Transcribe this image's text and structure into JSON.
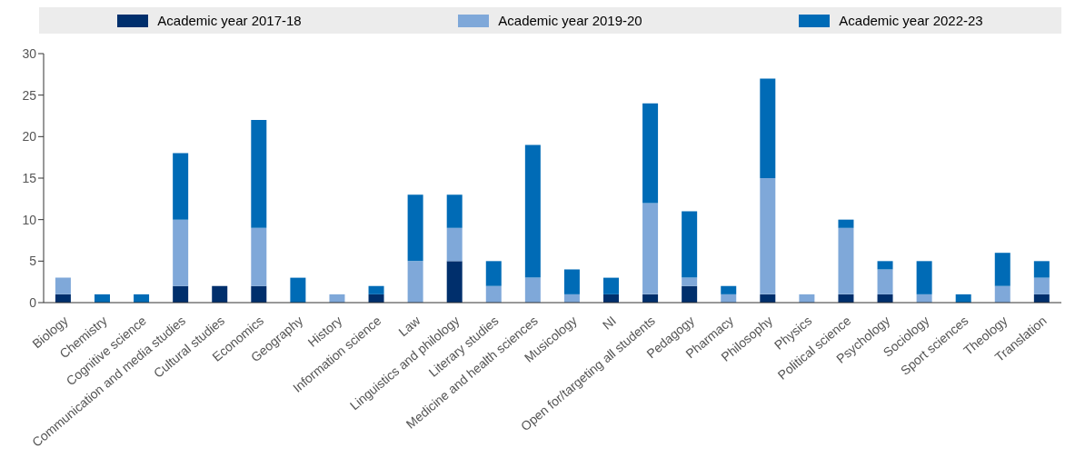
{
  "chart_data": {
    "type": "bar",
    "stacked": true,
    "categories": [
      "Biology",
      "Chemistry",
      "Cognitive science",
      "Communication and media studies",
      "Cultural studies",
      "Economics",
      "Geography",
      "History",
      "Information science",
      "Law",
      "Linguistics and philology",
      "Literary studies",
      "Medicine and health sciences",
      "Musicology",
      "NI",
      "Open for/targeting all students",
      "Pedagogy",
      "Pharmacy",
      "Philosophy",
      "Physics",
      "Political science",
      "Psychology",
      "Sociology",
      "Sport sciences",
      "Theology",
      "Translation"
    ],
    "series": [
      {
        "name": "Academic year 2017-18",
        "color": "#002f6c",
        "values": [
          1,
          0,
          0,
          2,
          2,
          2,
          0,
          0,
          1,
          0,
          5,
          0,
          0,
          0,
          1,
          1,
          2,
          0,
          1,
          0,
          1,
          1,
          0,
          0,
          0,
          1
        ]
      },
      {
        "name": "Academic year 2019-20",
        "color": "#7fa8d9",
        "values": [
          2,
          0,
          0,
          8,
          0,
          7,
          0,
          1,
          0,
          5,
          4,
          2,
          3,
          1,
          0,
          11,
          1,
          1,
          14,
          1,
          8,
          3,
          1,
          0,
          2,
          2
        ]
      },
      {
        "name": "Academic year 2022-23",
        "color": "#006bb6",
        "values": [
          0,
          1,
          1,
          8,
          0,
          13,
          3,
          0,
          1,
          8,
          4,
          3,
          16,
          3,
          2,
          12,
          8,
          1,
          12,
          0,
          1,
          1,
          4,
          1,
          4,
          2
        ]
      }
    ],
    "ylim": [
      0,
      30
    ],
    "yticks": [
      0,
      5,
      10,
      15,
      20,
      25,
      30
    ],
    "grid": false,
    "legend": "top"
  }
}
